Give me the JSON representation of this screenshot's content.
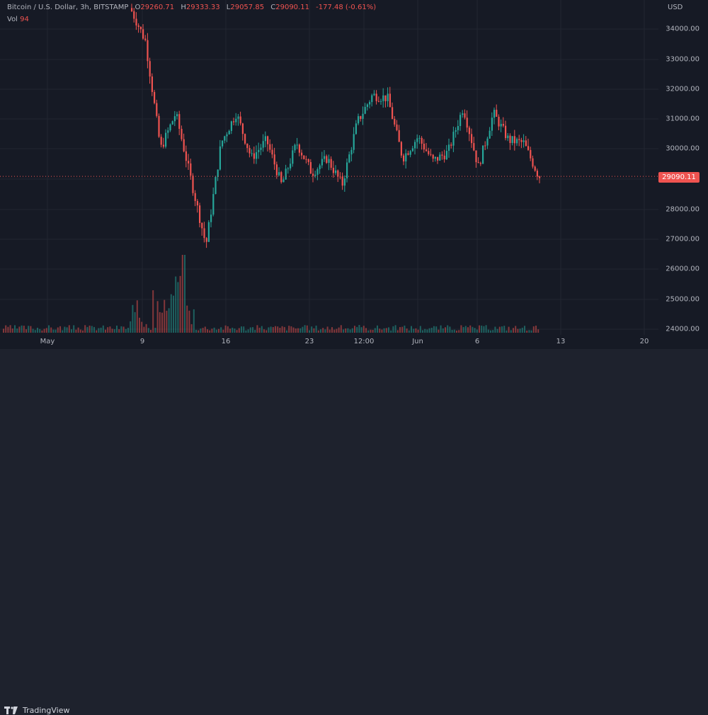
{
  "header": {
    "symbol": "Bitcoin / U.S. Dollar, 3h, BITSTAMP",
    "open_label": "O",
    "open": "29260.71",
    "high_label": "H",
    "high": "29333.33",
    "low_label": "L",
    "low": "29057.85",
    "close_label": "C",
    "close": "29090.11",
    "change": "-177.48 (-0.61%)",
    "vol_label": "Vol",
    "vol_value": "94"
  },
  "price_axis": {
    "currency": "USD",
    "labels": [
      "34000.00",
      "33000.00",
      "32000.00",
      "31000.00",
      "30000.00",
      "28000.00",
      "27000.00",
      "26000.00",
      "25000.00",
      "24000.00"
    ],
    "last_price": "29090.11"
  },
  "time_axis": {
    "ticks": [
      "May",
      "9",
      "16",
      "23",
      "12:00",
      "Jun",
      "6",
      "13",
      "20"
    ]
  },
  "footer": {
    "brand": "TradingView"
  },
  "colors": {
    "up": "#26a69a",
    "down": "#ef5350",
    "background": "#161a25",
    "grid": "#222631",
    "text": "#b2b5be"
  },
  "chart_data": {
    "type": "candlestick",
    "title": "Bitcoin / U.S. Dollar, 3h, BITSTAMP",
    "xlabel": "",
    "ylabel": "USD",
    "ylim": [
      24000,
      35000
    ],
    "x_ticks": [
      "May",
      "9",
      "16",
      "23",
      "12:00",
      "Jun",
      "6",
      "13",
      "20"
    ],
    "last": {
      "open": 29260.71,
      "high": 29333.33,
      "low": 29057.85,
      "close": 29090.11,
      "change": -177.48,
      "change_pct": -0.61,
      "volume": 94
    },
    "approx_close_path": [
      {
        "x": "May 8",
        "price": 34700
      },
      {
        "x": "May 9",
        "price": 33600
      },
      {
        "x": "May 10",
        "price": 30000
      },
      {
        "x": "May 10 late",
        "price": 31200
      },
      {
        "x": "May 11",
        "price": 29000
      },
      {
        "x": "May 12",
        "price": 26800
      },
      {
        "x": "May 13",
        "price": 30200
      },
      {
        "x": "May 15",
        "price": 31200
      },
      {
        "x": "May 16",
        "price": 29700
      },
      {
        "x": "May 18",
        "price": 30300
      },
      {
        "x": "May 20",
        "price": 28800
      },
      {
        "x": "May 22",
        "price": 30200
      },
      {
        "x": "May 24",
        "price": 29200
      },
      {
        "x": "May 26",
        "price": 29700
      },
      {
        "x": "May 28",
        "price": 28800
      },
      {
        "x": "May 30",
        "price": 30900
      },
      {
        "x": "May 31",
        "price": 31800
      },
      {
        "x": "Jun 1",
        "price": 31700
      },
      {
        "x": "Jun 2",
        "price": 29700
      },
      {
        "x": "Jun 3",
        "price": 30400
      },
      {
        "x": "Jun 4",
        "price": 29600
      },
      {
        "x": "Jun 5",
        "price": 29900
      },
      {
        "x": "Jun 6",
        "price": 31400
      },
      {
        "x": "Jun 7",
        "price": 29400
      },
      {
        "x": "Jun 7 late",
        "price": 31200
      },
      {
        "x": "Jun 8",
        "price": 30300
      },
      {
        "x": "Jun 9",
        "price": 30200
      },
      {
        "x": "Jun 10",
        "price": 29090
      }
    ]
  }
}
